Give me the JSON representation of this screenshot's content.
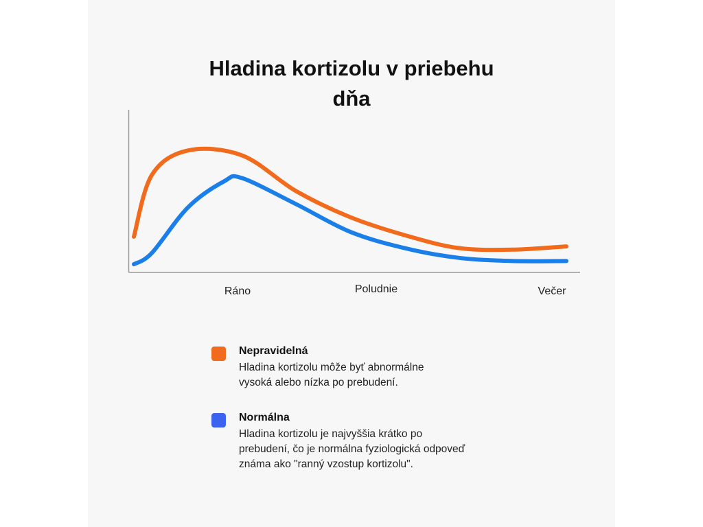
{
  "chart_data": {
    "type": "line",
    "title_lines": [
      "Hladina kortizolu v priebehu",
      "dňa"
    ],
    "x_ticks": [
      "Ráno",
      "Poludnie",
      "Večer"
    ],
    "xlabel": "",
    "ylabel": "",
    "grid": false,
    "legend_position": "bottom",
    "series": [
      {
        "name": "Nepravidelná",
        "color": "#f26a1b",
        "description_lines": [
          "Hladina kortizolu môže byť abnormálne",
          "vysoká alebo nízka po prebudení."
        ],
        "x": [
          0,
          0.5,
          1.5,
          3,
          4.5,
          6,
          7.5,
          9,
          10.5,
          12
        ],
        "y": [
          2.2,
          6.0,
          7.5,
          7.2,
          5.0,
          3.4,
          2.3,
          1.5,
          1.4,
          1.6
        ]
      },
      {
        "name": "Normálna",
        "color": "#1a7fe8",
        "legend_color": "#3b63f0",
        "description_lines": [
          "Hladina kortizolu je najvyššia krátko po",
          "prebudení, čo je normálna fyziologická odpoveď",
          "známa ako \"ranný vzostup kortizolu\"."
        ],
        "x": [
          0,
          0.5,
          1.5,
          2.5,
          3,
          4.5,
          6,
          7.5,
          9,
          10.5,
          12
        ],
        "y": [
          0.5,
          1.2,
          4.0,
          5.6,
          5.8,
          4.2,
          2.5,
          1.5,
          0.9,
          0.7,
          0.7
        ]
      }
    ],
    "xlim": [
      0,
      12
    ],
    "ylim": [
      0,
      10
    ]
  }
}
